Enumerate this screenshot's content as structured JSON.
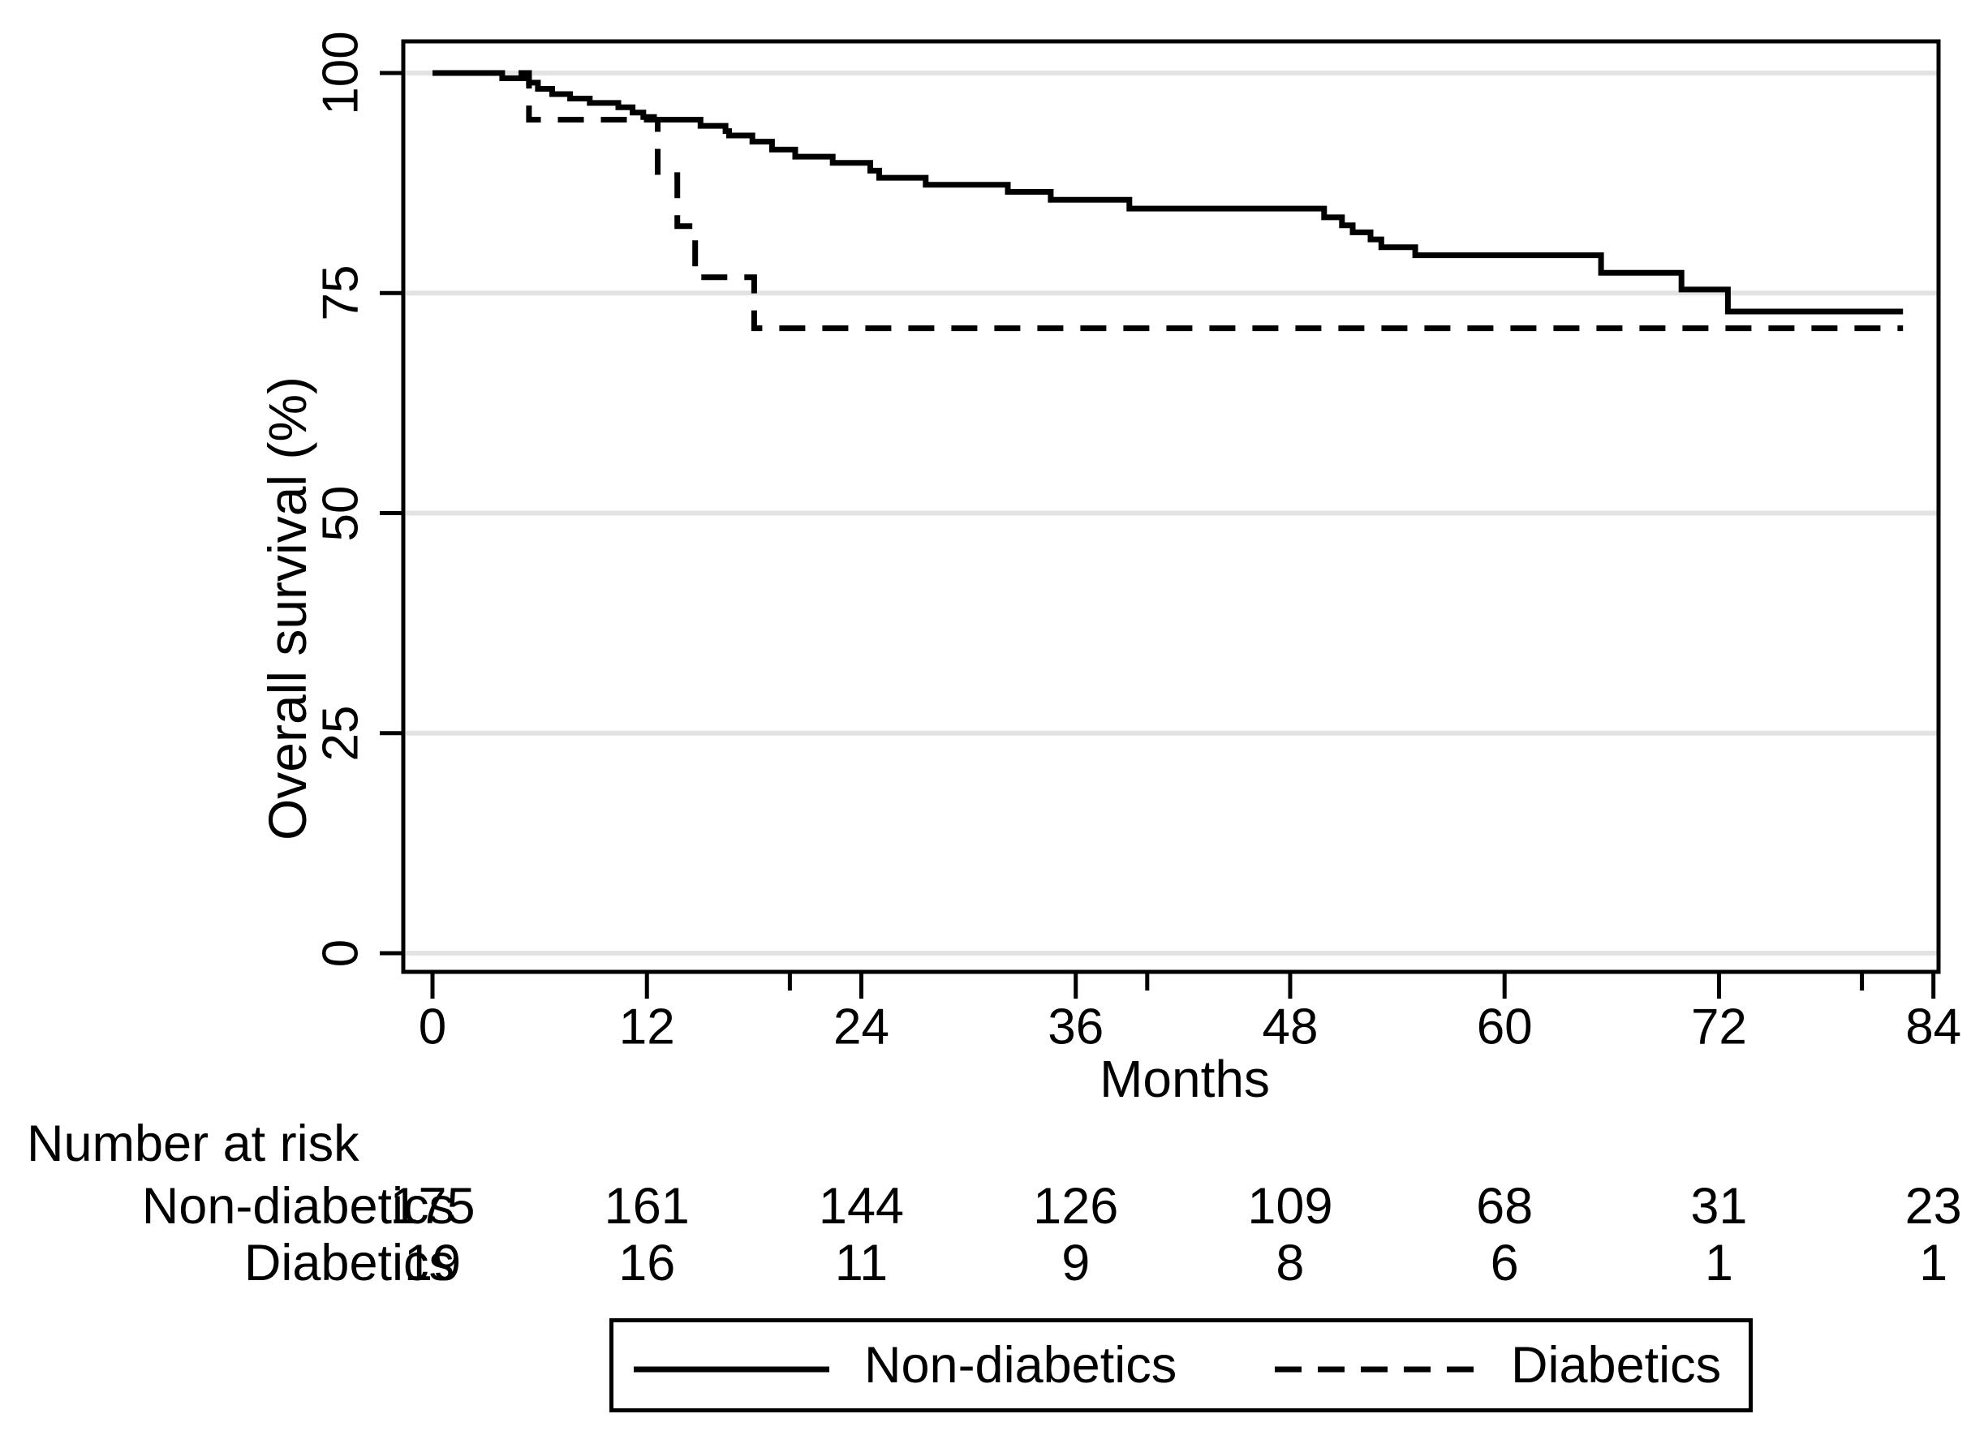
{
  "chart_data": {
    "type": "line",
    "variant": "kaplan_meier_step_plot",
    "title": "",
    "xlabel": "Months",
    "ylabel": "Overall survival (%)",
    "xlim": [
      0,
      84
    ],
    "ylim": [
      0,
      100
    ],
    "x_ticks_labeled": [
      0,
      12,
      24,
      36,
      48,
      60,
      72,
      84
    ],
    "x_ticks_minor_unlabeled": [
      20,
      40,
      80
    ],
    "y_ticks_labeled": [
      100,
      75,
      50,
      25,
      0
    ],
    "grid": "horizontal_gridlines_at_y_ticks",
    "legend_position": "bottom_center_boxed",
    "colors": {
      "curves": "#000000",
      "grid": "#e3e3e3",
      "text": "#000000",
      "frame": "#000000",
      "background": "#ffffff"
    },
    "series": [
      {
        "name": "Non-diabetics",
        "line_style": "solid",
        "end_month": 82.3,
        "points_month_percent": [
          [
            0,
            100
          ],
          [
            3.9,
            99.4
          ],
          [
            5.4,
            98.9
          ],
          [
            5.9,
            98.2
          ],
          [
            6.7,
            97.6
          ],
          [
            7.7,
            97.1
          ],
          [
            8.8,
            96.6
          ],
          [
            10.4,
            96.1
          ],
          [
            11.2,
            95.5
          ],
          [
            11.8,
            95.0
          ],
          [
            12.4,
            94.7
          ],
          [
            15.0,
            94.0
          ],
          [
            16.4,
            93.4
          ],
          [
            16.6,
            92.9
          ],
          [
            17.9,
            92.2
          ],
          [
            19.0,
            91.3
          ],
          [
            20.3,
            90.5
          ],
          [
            22.4,
            89.8
          ],
          [
            24.5,
            88.9
          ],
          [
            25.0,
            88.1
          ],
          [
            27.6,
            87.3
          ],
          [
            32.2,
            86.5
          ],
          [
            34.6,
            85.6
          ],
          [
            39.0,
            84.6
          ],
          [
            49.9,
            83.6
          ],
          [
            50.9,
            82.7
          ],
          [
            51.5,
            81.9
          ],
          [
            52.5,
            81.1
          ],
          [
            53.1,
            80.2
          ],
          [
            55.0,
            79.3
          ],
          [
            65.4,
            77.3
          ],
          [
            69.9,
            75.4
          ],
          [
            72.5,
            72.9
          ]
        ]
      },
      {
        "name": "Diabetics",
        "line_style": "dashed",
        "end_month": 82.3,
        "points_month_percent": [
          [
            0,
            100
          ],
          [
            5.4,
            94.7
          ],
          [
            12.6,
            88.4
          ],
          [
            13.7,
            82.6
          ],
          [
            14.7,
            76.8
          ],
          [
            18.0,
            71.0
          ]
        ]
      }
    ],
    "legend": {
      "entries": [
        {
          "label": "Non-diabetics",
          "line_style": "solid"
        },
        {
          "label": "Diabetics",
          "line_style": "dashed"
        }
      ]
    },
    "risk_table": {
      "title": "Number at risk",
      "months": [
        0,
        12,
        24,
        36,
        48,
        60,
        72,
        84
      ],
      "rows": [
        {
          "label": "Non-diabetics",
          "counts": [
            175,
            161,
            144,
            126,
            109,
            68,
            31,
            23
          ]
        },
        {
          "label": "Diabetics",
          "counts": [
            19,
            16,
            11,
            9,
            8,
            6,
            1,
            1
          ]
        }
      ]
    }
  }
}
